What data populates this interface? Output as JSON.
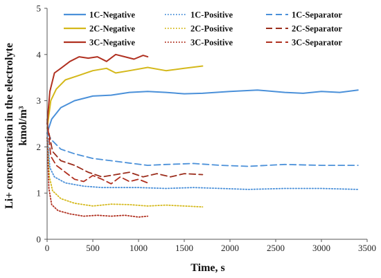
{
  "chart_data": {
    "type": "line",
    "xlabel": "Time, s",
    "ylabel_line1": "Li+ concentration in the electrolyte",
    "ylabel_line2": "kmol/m³",
    "xlim": [
      0,
      3500
    ],
    "ylim": [
      0,
      5
    ],
    "xticks": [
      0,
      500,
      1000,
      1500,
      2000,
      2500,
      3000,
      3500
    ],
    "yticks": [
      0,
      1,
      2,
      3,
      4,
      5
    ],
    "grid": false,
    "legend_position": "top",
    "series": [
      {
        "name": "1C-Negative",
        "color": "#4a90d9",
        "style": "solid",
        "x": [
          0,
          50,
          150,
          300,
          500,
          700,
          900,
          1100,
          1300,
          1500,
          1700,
          2000,
          2300,
          2600,
          2800,
          3000,
          3200,
          3400
        ],
        "y": [
          2.3,
          2.6,
          2.85,
          3.0,
          3.1,
          3.12,
          3.18,
          3.2,
          3.18,
          3.15,
          3.16,
          3.2,
          3.23,
          3.18,
          3.16,
          3.2,
          3.18,
          3.23
        ]
      },
      {
        "name": "1C-Positive",
        "color": "#4a90d9",
        "style": "dotted",
        "x": [
          0,
          30,
          80,
          200,
          400,
          600,
          800,
          1000,
          1300,
          1600,
          1900,
          2200,
          2600,
          3000,
          3400
        ],
        "y": [
          2.3,
          1.55,
          1.35,
          1.22,
          1.15,
          1.12,
          1.12,
          1.12,
          1.1,
          1.12,
          1.1,
          1.08,
          1.1,
          1.1,
          1.08
        ]
      },
      {
        "name": "1C-Separator",
        "color": "#4a90d9",
        "style": "dashed",
        "x": [
          0,
          50,
          150,
          300,
          500,
          700,
          900,
          1100,
          1300,
          1600,
          1900,
          2200,
          2600,
          3000,
          3400
        ],
        "y": [
          2.3,
          2.15,
          1.95,
          1.85,
          1.75,
          1.7,
          1.65,
          1.6,
          1.62,
          1.64,
          1.6,
          1.58,
          1.62,
          1.6,
          1.6
        ]
      },
      {
        "name": "2C-Negative",
        "color": "#d4b81a",
        "style": "solid",
        "x": [
          0,
          40,
          100,
          200,
          350,
          500,
          650,
          750,
          900,
          1100,
          1300,
          1500,
          1700
        ],
        "y": [
          2.4,
          3.0,
          3.25,
          3.45,
          3.55,
          3.65,
          3.7,
          3.6,
          3.65,
          3.72,
          3.65,
          3.7,
          3.75
        ]
      },
      {
        "name": "2C-Positive",
        "color": "#d4b81a",
        "style": "dotted",
        "x": [
          0,
          25,
          60,
          150,
          300,
          500,
          700,
          900,
          1100,
          1300,
          1500,
          1700
        ],
        "y": [
          2.2,
          1.35,
          1.05,
          0.88,
          0.78,
          0.72,
          0.76,
          0.75,
          0.72,
          0.74,
          0.72,
          0.7
        ]
      },
      {
        "name": "2C-Separator",
        "color": "#9b2d1c",
        "style": "dashed",
        "x": [
          0,
          60,
          150,
          300,
          450,
          600,
          750,
          900,
          1050,
          1200,
          1350,
          1500,
          1700
        ],
        "y": [
          2.5,
          1.9,
          1.7,
          1.6,
          1.45,
          1.35,
          1.4,
          1.45,
          1.35,
          1.42,
          1.35,
          1.42,
          1.4
        ]
      },
      {
        "name": "3C-Negative",
        "color": "#b03020",
        "style": "solid",
        "x": [
          0,
          30,
          80,
          150,
          250,
          350,
          450,
          550,
          650,
          750,
          850,
          950,
          1050,
          1100
        ],
        "y": [
          2.5,
          3.2,
          3.6,
          3.7,
          3.85,
          3.95,
          3.92,
          3.95,
          3.85,
          4.0,
          3.95,
          3.9,
          3.98,
          3.95
        ]
      },
      {
        "name": "3C-Positive",
        "color": "#b03020",
        "style": "dotted",
        "x": [
          0,
          20,
          50,
          120,
          250,
          400,
          550,
          700,
          850,
          1000,
          1100
        ],
        "y": [
          2.2,
          1.1,
          0.75,
          0.62,
          0.55,
          0.5,
          0.52,
          0.5,
          0.52,
          0.48,
          0.5
        ]
      },
      {
        "name": "3C-Separator",
        "color": "#b03020",
        "style": "dashed",
        "x": [
          0,
          40,
          100,
          200,
          300,
          400,
          500,
          600,
          700,
          800,
          900,
          1000,
          1100
        ],
        "y": [
          2.6,
          1.8,
          1.6,
          1.45,
          1.3,
          1.25,
          1.38,
          1.3,
          1.2,
          1.35,
          1.25,
          1.3,
          1.22
        ]
      }
    ]
  }
}
